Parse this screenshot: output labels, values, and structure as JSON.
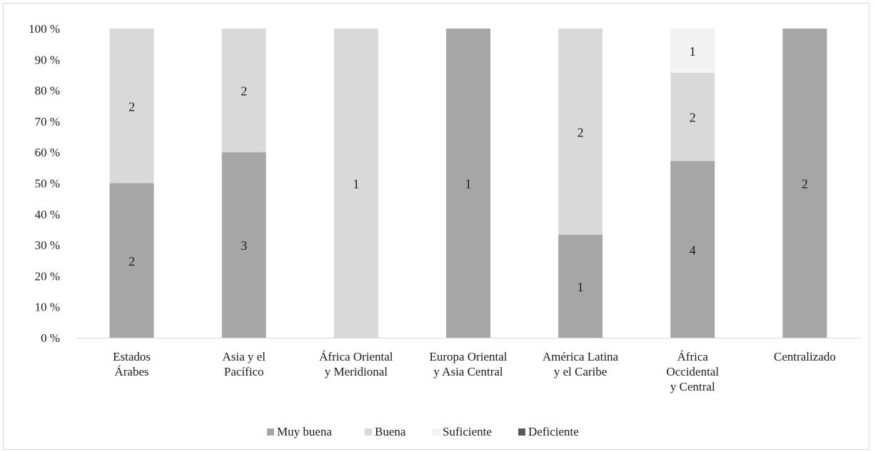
{
  "chart_data": {
    "type": "bar",
    "stacked": true,
    "percent_stacked": true,
    "title": "",
    "xlabel": "",
    "ylabel": "",
    "ylim": [
      0,
      100
    ],
    "yticks": [
      "0 %",
      "10 %",
      "20 %",
      "30 %",
      "40 %",
      "50 %",
      "60 %",
      "70 %",
      "80 %",
      "90 %",
      "100 %"
    ],
    "categories": [
      [
        "Estados",
        "Árabes"
      ],
      [
        "Asia y el",
        "Pacífico"
      ],
      [
        "África Oriental",
        "y Meridional"
      ],
      [
        "Europa Oriental",
        "y Asia Central"
      ],
      [
        "América Latina",
        "y el Caribe"
      ],
      [
        "África",
        "Occidental",
        "y Central"
      ],
      [
        "Centralizado"
      ]
    ],
    "series": [
      {
        "name": "Muy buena",
        "color": "#a6a6a6",
        "values": [
          2,
          3,
          0,
          1,
          1,
          4,
          2
        ]
      },
      {
        "name": "Buena",
        "color": "#d9d9d9",
        "values": [
          2,
          2,
          1,
          0,
          2,
          2,
          0
        ]
      },
      {
        "name": "Suficiente",
        "color": "#f2f2f2",
        "values": [
          0,
          0,
          0,
          0,
          0,
          1,
          0
        ]
      },
      {
        "name": "Deficiente",
        "color": "#595959",
        "values": [
          0,
          0,
          0,
          0,
          0,
          0,
          0
        ]
      }
    ],
    "grid": false,
    "legend_position": "bottom"
  }
}
